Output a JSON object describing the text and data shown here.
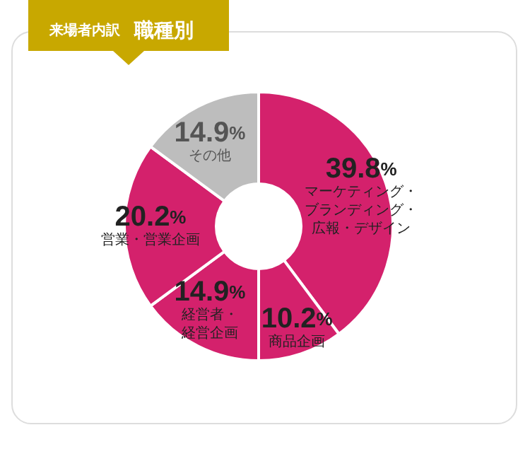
{
  "chart_data": {
    "type": "donut",
    "title": "来場者内訳",
    "subtitle": "職種別",
    "categories": [
      "マーケティング・ブランディング・広報・デザイン",
      "商品企画",
      "経営者・経営企画",
      "営業・営業企画",
      "その他"
    ],
    "values": [
      39.8,
      10.2,
      14.9,
      20.2,
      14.9
    ],
    "value_labels": [
      "39.8%",
      "10.2%",
      "14.9%",
      "20.2%",
      "14.9%"
    ],
    "colors": [
      "#d4216c",
      "#d4216c",
      "#d4216c",
      "#d4216c",
      "#bdbdbd"
    ],
    "legend": false
  }
}
